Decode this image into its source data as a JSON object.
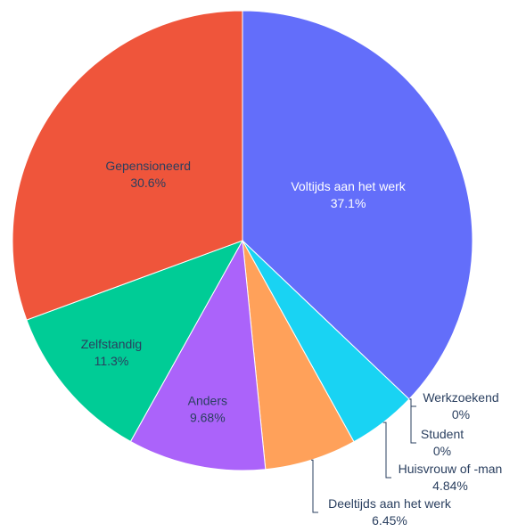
{
  "chart_data": {
    "type": "pie",
    "categories": [
      "Voltijds aan het werk",
      "Werkzoekend",
      "Student",
      "Huisvrouw of -man",
      "Deeltijds aan het werk",
      "Anders",
      "Zelfstandig",
      "Gepensioneerd"
    ],
    "values": [
      37.1,
      0,
      0,
      4.84,
      6.45,
      9.68,
      11.3,
      30.6
    ],
    "value_labels": [
      "37.1%",
      "0%",
      "0%",
      "4.84%",
      "6.45%",
      "9.68%",
      "11.3%",
      "30.6%"
    ],
    "colors": [
      "#636efa",
      "#FF6692",
      "#B6E880",
      "#19d3f3",
      "#FFA15A",
      "#ab63fa",
      "#00cc96",
      "#EF553B"
    ]
  }
}
